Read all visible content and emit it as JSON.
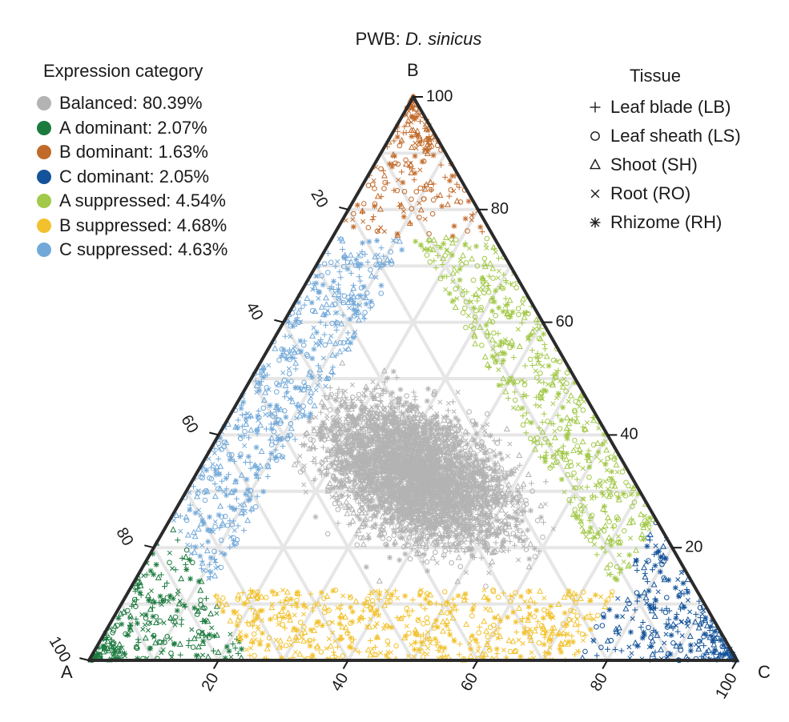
{
  "chart_data": {
    "type": "scatter",
    "subtype": "ternary",
    "title_prefix": "PWB: ",
    "title_species": "D. sinicus",
    "corners": {
      "left": "A",
      "top": "B",
      "right": "C"
    },
    "ticks": {
      "A": [
        "20",
        "40",
        "60",
        "80",
        "100"
      ],
      "B": [
        "20",
        "40",
        "60",
        "80",
        "100"
      ],
      "C": [
        "20",
        "40",
        "60",
        "80",
        "100"
      ]
    },
    "range": [
      0,
      100
    ],
    "grid": true,
    "legend_category": {
      "title": "Expression category",
      "placement": "top-left",
      "items": [
        {
          "label": "Balanced: 80.39%",
          "color": "#b3b3b3",
          "key": "balanced",
          "fraction": 0.8039
        },
        {
          "label": "A dominant: 2.07%",
          "color": "#1b7a3e",
          "key": "a_dom",
          "fraction": 0.0207
        },
        {
          "label": "B dominant: 1.63%",
          "color": "#c26a2a",
          "key": "b_dom",
          "fraction": 0.0163
        },
        {
          "label": "C dominant: 2.05%",
          "color": "#14539a",
          "key": "c_dom",
          "fraction": 0.0205
        },
        {
          "label": "A suppressed: 4.54%",
          "color": "#a3c94a",
          "key": "a_sup",
          "fraction": 0.0454
        },
        {
          "label": "B suppressed: 4.68%",
          "color": "#f2c22e",
          "key": "b_sup",
          "fraction": 0.0468
        },
        {
          "label": "C suppressed: 4.63%",
          "color": "#73a9d9",
          "key": "c_sup",
          "fraction": 0.0463
        }
      ]
    },
    "legend_tissue": {
      "title": "Tissue",
      "placement": "top-right",
      "items": [
        {
          "label": "Leaf blade (LB)",
          "shape": "plus-icon"
        },
        {
          "label": "Leaf sheath (LS)",
          "shape": "circle-icon"
        },
        {
          "label": "Shoot (SH)",
          "shape": "triangle-icon"
        },
        {
          "label": "Root (RO)",
          "shape": "cross-icon"
        },
        {
          "label": "Rhizome (RH)",
          "shape": "asterisk-icon"
        }
      ]
    },
    "regions": {
      "balanced": {
        "A": [
          0,
          75
        ],
        "B": [
          0,
          75
        ],
        "C": [
          0,
          75
        ],
        "min_each": 12.5
      },
      "a_dom": {
        "A": [
          75,
          100
        ]
      },
      "b_dom": {
        "B": [
          75,
          100
        ]
      },
      "c_dom": {
        "C": [
          75,
          100
        ]
      },
      "a_sup": {
        "A": [
          0,
          12.5
        ]
      },
      "b_sup": {
        "B": [
          0,
          12.5
        ]
      },
      "c_sup": {
        "C": [
          0,
          12.5
        ]
      }
    }
  }
}
